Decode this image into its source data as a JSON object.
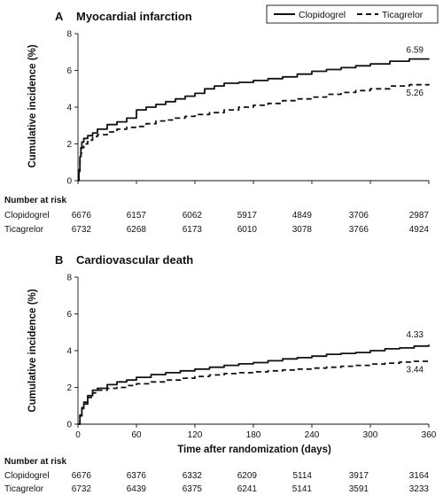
{
  "legend": {
    "entries": [
      {
        "label": "Clopidogrel",
        "style": "solid"
      },
      {
        "label": "Ticagrelor",
        "style": "dashed"
      }
    ]
  },
  "colors": {
    "line": "#111111",
    "axis": "#111111"
  },
  "chart_data": [
    {
      "type": "line",
      "panel_letter": "A",
      "title": "Myocardial infarction",
      "ylabel": "Cumulative incidence (%)",
      "xlabel": "",
      "ylim": [
        0,
        8
      ],
      "yticks": [
        0,
        2,
        4,
        6,
        8
      ],
      "xlim": [
        0,
        360
      ],
      "xticks": [],
      "series": [
        {
          "name": "Clopidogrel",
          "style": "solid",
          "end_label": "6.59",
          "points": [
            [
              0,
              0
            ],
            [
              1,
              0.6
            ],
            [
              2,
              1.3
            ],
            [
              3,
              1.8
            ],
            [
              4,
              2.1
            ],
            [
              6,
              2.3
            ],
            [
              10,
              2.45
            ],
            [
              15,
              2.6
            ],
            [
              20,
              2.8
            ],
            [
              30,
              3.05
            ],
            [
              40,
              3.2
            ],
            [
              50,
              3.4
            ],
            [
              60,
              3.85
            ],
            [
              70,
              4.0
            ],
            [
              80,
              4.15
            ],
            [
              90,
              4.3
            ],
            [
              100,
              4.45
            ],
            [
              110,
              4.6
            ],
            [
              120,
              4.75
            ],
            [
              130,
              5.0
            ],
            [
              140,
              5.15
            ],
            [
              150,
              5.3
            ],
            [
              165,
              5.35
            ],
            [
              180,
              5.45
            ],
            [
              195,
              5.55
            ],
            [
              210,
              5.65
            ],
            [
              225,
              5.8
            ],
            [
              240,
              5.95
            ],
            [
              255,
              6.05
            ],
            [
              270,
              6.15
            ],
            [
              285,
              6.25
            ],
            [
              300,
              6.35
            ],
            [
              320,
              6.5
            ],
            [
              340,
              6.62
            ],
            [
              360,
              6.59
            ]
          ]
        },
        {
          "name": "Ticagrelor",
          "style": "dashed",
          "end_label": "5.26",
          "points": [
            [
              0,
              0
            ],
            [
              1,
              0.5
            ],
            [
              2,
              1.1
            ],
            [
              3,
              1.5
            ],
            [
              4,
              1.8
            ],
            [
              6,
              2.0
            ],
            [
              10,
              2.2
            ],
            [
              15,
              2.4
            ],
            [
              20,
              2.5
            ],
            [
              30,
              2.65
            ],
            [
              40,
              2.8
            ],
            [
              50,
              2.9
            ],
            [
              60,
              2.95
            ],
            [
              70,
              3.1
            ],
            [
              80,
              3.25
            ],
            [
              90,
              3.3
            ],
            [
              100,
              3.4
            ],
            [
              110,
              3.5
            ],
            [
              120,
              3.6
            ],
            [
              135,
              3.7
            ],
            [
              150,
              3.85
            ],
            [
              165,
              4.0
            ],
            [
              180,
              4.1
            ],
            [
              195,
              4.2
            ],
            [
              210,
              4.35
            ],
            [
              225,
              4.45
            ],
            [
              240,
              4.55
            ],
            [
              255,
              4.7
            ],
            [
              270,
              4.8
            ],
            [
              285,
              4.9
            ],
            [
              300,
              5.0
            ],
            [
              320,
              5.15
            ],
            [
              340,
              5.22
            ],
            [
              360,
              5.26
            ]
          ]
        }
      ],
      "risk_table": {
        "header": "Number at risk",
        "rows": [
          {
            "group": "Clopidogrel",
            "values": [
              "6676",
              "6157",
              "6062",
              "5917",
              "4849",
              "3706",
              "2987"
            ]
          },
          {
            "group": "Ticagrelor",
            "values": [
              "6732",
              "6268",
              "6173",
              "6010",
              "3078",
              "3766",
              "4924"
            ]
          }
        ]
      }
    },
    {
      "type": "line",
      "panel_letter": "B",
      "title": "Cardiovascular death",
      "ylabel": "Cumulative incidence (%)",
      "xlabel": "Time after randomization (days)",
      "ylim": [
        0,
        8
      ],
      "yticks": [
        0,
        2,
        4,
        6,
        8
      ],
      "xlim": [
        0,
        360
      ],
      "xticks": [
        0,
        60,
        120,
        180,
        240,
        300,
        360
      ],
      "series": [
        {
          "name": "Clopidogrel",
          "style": "solid",
          "end_label": "4.33",
          "points": [
            [
              0,
              0
            ],
            [
              2,
              0.5
            ],
            [
              4,
              0.9
            ],
            [
              6,
              1.2
            ],
            [
              10,
              1.55
            ],
            [
              15,
              1.85
            ],
            [
              20,
              1.95
            ],
            [
              30,
              2.15
            ],
            [
              40,
              2.3
            ],
            [
              50,
              2.4
            ],
            [
              60,
              2.55
            ],
            [
              75,
              2.7
            ],
            [
              90,
              2.8
            ],
            [
              105,
              2.9
            ],
            [
              120,
              3.0
            ],
            [
              135,
              3.1
            ],
            [
              150,
              3.2
            ],
            [
              165,
              3.28
            ],
            [
              180,
              3.35
            ],
            [
              195,
              3.45
            ],
            [
              210,
              3.55
            ],
            [
              225,
              3.62
            ],
            [
              240,
              3.7
            ],
            [
              255,
              3.8
            ],
            [
              270,
              3.85
            ],
            [
              285,
              3.9
            ],
            [
              300,
              4.0
            ],
            [
              315,
              4.1
            ],
            [
              330,
              4.15
            ],
            [
              345,
              4.25
            ],
            [
              360,
              4.33
            ]
          ]
        },
        {
          "name": "Ticagrelor",
          "style": "dashed",
          "end_label": "3.44",
          "points": [
            [
              0,
              0
            ],
            [
              2,
              0.45
            ],
            [
              4,
              0.85
            ],
            [
              6,
              1.1
            ],
            [
              10,
              1.45
            ],
            [
              15,
              1.7
            ],
            [
              20,
              1.85
            ],
            [
              30,
              1.95
            ],
            [
              40,
              2.0
            ],
            [
              50,
              2.1
            ],
            [
              60,
              2.2
            ],
            [
              75,
              2.3
            ],
            [
              90,
              2.4
            ],
            [
              105,
              2.5
            ],
            [
              120,
              2.6
            ],
            [
              135,
              2.68
            ],
            [
              150,
              2.75
            ],
            [
              165,
              2.8
            ],
            [
              180,
              2.85
            ],
            [
              195,
              2.9
            ],
            [
              210,
              2.95
            ],
            [
              225,
              3.0
            ],
            [
              240,
              3.05
            ],
            [
              255,
              3.1
            ],
            [
              270,
              3.15
            ],
            [
              285,
              3.2
            ],
            [
              300,
              3.27
            ],
            [
              315,
              3.32
            ],
            [
              330,
              3.38
            ],
            [
              345,
              3.42
            ],
            [
              360,
              3.44
            ]
          ]
        }
      ],
      "risk_table": {
        "header": "Number at risk",
        "rows": [
          {
            "group": "Clopidogrel",
            "values": [
              "6676",
              "6376",
              "6332",
              "6209",
              "5114",
              "3917",
              "3164"
            ]
          },
          {
            "group": "Ticagrelor",
            "values": [
              "6732",
              "6439",
              "6375",
              "6241",
              "5141",
              "3591",
              "3233"
            ]
          }
        ]
      }
    }
  ]
}
